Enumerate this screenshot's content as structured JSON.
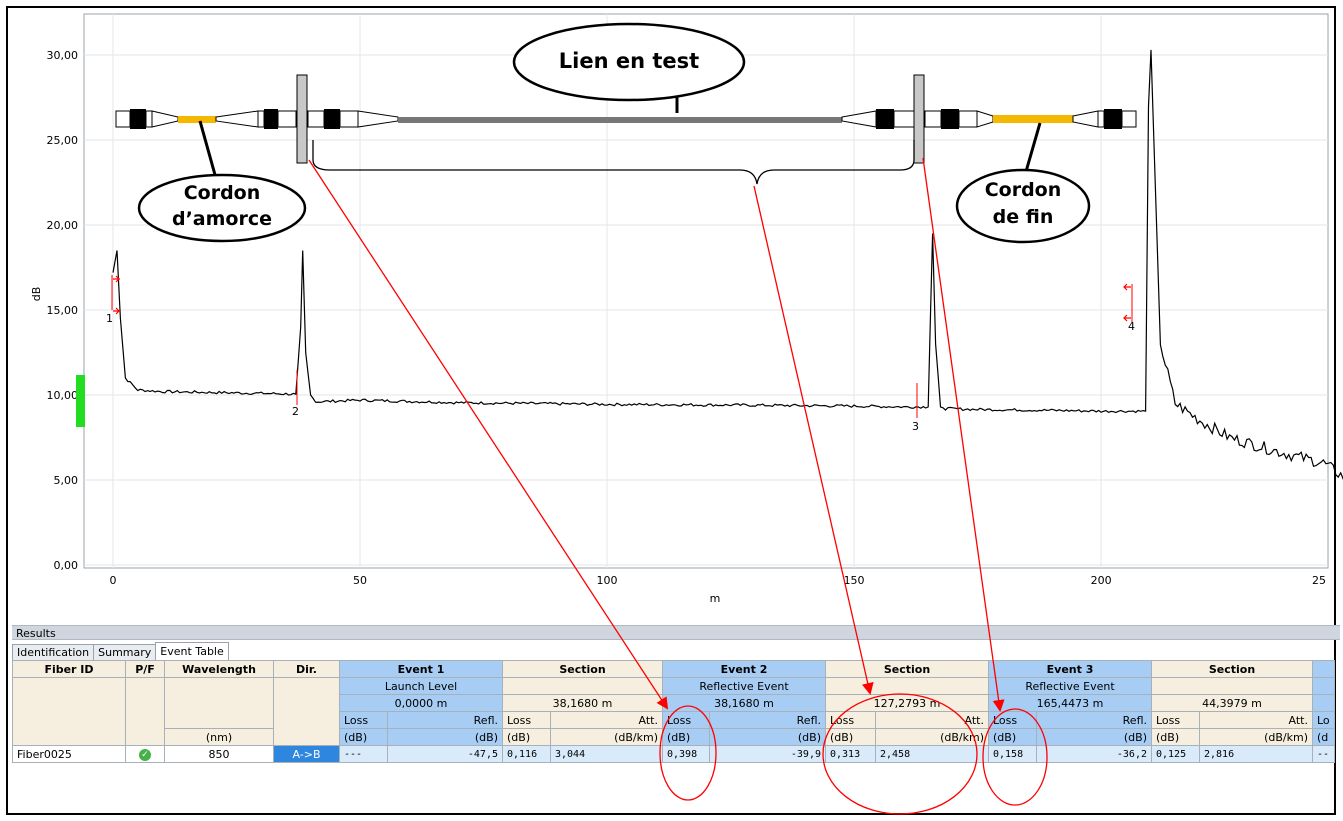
{
  "chart": {
    "ylabel": "dB",
    "xlabel": "m",
    "y_ticks": [
      "0,00",
      "5,00",
      "10,00",
      "15,00",
      "20,00",
      "25,00",
      "30,00"
    ],
    "x_ticks": [
      "0",
      "50",
      "100",
      "150",
      "200",
      "25"
    ],
    "event_markers": [
      "1",
      "2",
      "3",
      "4"
    ]
  },
  "chart_data": {
    "type": "line",
    "title": "",
    "xlabel": "m",
    "ylabel": "dB",
    "xlim": [
      -3,
      250
    ],
    "ylim": [
      0,
      32
    ],
    "grid": true,
    "series": [
      {
        "x": [
          0,
          0.8,
          1.5,
          2.5,
          5,
          10,
          20,
          30,
          37,
          38,
          38.4,
          39,
          40,
          41,
          50,
          70,
          100,
          130,
          150,
          160,
          165,
          165.5,
          165.9,
          166.5,
          167.5,
          168.5,
          175,
          190,
          200,
          209,
          209.6,
          210.1,
          210.8,
          212,
          215,
          220,
          226,
          232,
          238,
          245,
          250
        ],
        "y": [
          17.2,
          18.5,
          14.5,
          11,
          10.3,
          10.2,
          10.15,
          10.1,
          10.05,
          14,
          18.5,
          12.5,
          10,
          9.6,
          9.7,
          9.55,
          9.45,
          9.4,
          9.35,
          9.3,
          9.3,
          15,
          19.5,
          13,
          9.3,
          9.2,
          9.15,
          9.1,
          9.05,
          9.05,
          27,
          30.3,
          24,
          13,
          9.5,
          8.5,
          7.5,
          7,
          6.5,
          6,
          5
        ]
      }
    ]
  },
  "illustration": {
    "callout_link": "Lien en test",
    "callout_launch_line1": "Cordon",
    "callout_launch_line2": "d’amorce",
    "callout_end_line1": "Cordon",
    "callout_end_line2": "de fin"
  },
  "results": {
    "panel_title": "Results",
    "tabs": [
      "Identification",
      "Summary",
      "Event Table"
    ],
    "active_tab": "Event Table",
    "headers": {
      "fiber_id": "Fiber ID",
      "pf": "P/F",
      "wavelength": "Wavelength",
      "wavelength_unit": "(nm)",
      "dir": "Dir.",
      "event1": "Event 1",
      "section": "Section",
      "event2": "Event 2",
      "event3": "Event 3"
    },
    "event1": {
      "type": "Launch Level",
      "pos": "0,0000 m"
    },
    "section1": {
      "len": "38,1680 m"
    },
    "event2": {
      "type": "Reflective Event",
      "pos": "38,1680 m"
    },
    "section2": {
      "len": "127,2793 m"
    },
    "event3": {
      "type": "Reflective Event",
      "pos": "165,4473 m"
    },
    "section3": {
      "len": "44,3979 m"
    },
    "sub": {
      "loss": "Loss",
      "refl": "Refl.",
      "att": "Att.",
      "db": "(dB)",
      "dbkm": "(dB/km)"
    },
    "row": {
      "fiber_id": "Fiber0025",
      "pf_icon": "check-icon",
      "wavelength": "850",
      "dir": "A->B",
      "e1_loss": "---",
      "e1_refl": "-47,5",
      "s1_loss": "0,116",
      "s1_att": "3,044",
      "e2_loss": "0,398",
      "e2_refl": "-39,9",
      "s2_loss": "0,313",
      "s2_att": "2,458",
      "e3_loss": "0,158",
      "e3_refl": "-36,2",
      "s3_loss": "0,125",
      "s3_att": "2,816",
      "e4_partial_loss": "Lo",
      "e4_partial_db": "(d",
      "e4_partial_val": "--"
    }
  },
  "colors": {
    "trace": "#000000",
    "annotation_red": "#ff0000",
    "event_blue": "#a7cdf5",
    "section_beige": "#f6efdf",
    "connector_yellow": "#f5b800",
    "green_marker": "#22dd22"
  }
}
